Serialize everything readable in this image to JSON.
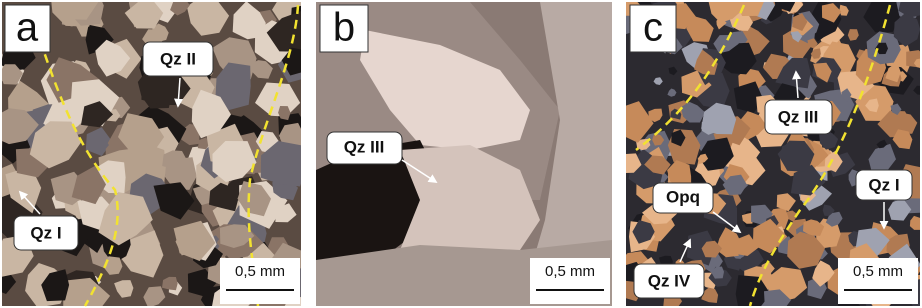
{
  "panels": [
    {
      "letter": "a",
      "labels": [
        "Qz II",
        "Qz I"
      ],
      "scale_bar": "0,5 mm"
    },
    {
      "letter": "b",
      "labels": [
        "Qz III"
      ],
      "scale_bar": "0,5 mm"
    },
    {
      "letter": "c",
      "labels": [
        "Qz III",
        "Opq",
        "Qz I",
        "Qz IV"
      ],
      "scale_bar": "0,5 mm"
    }
  ]
}
